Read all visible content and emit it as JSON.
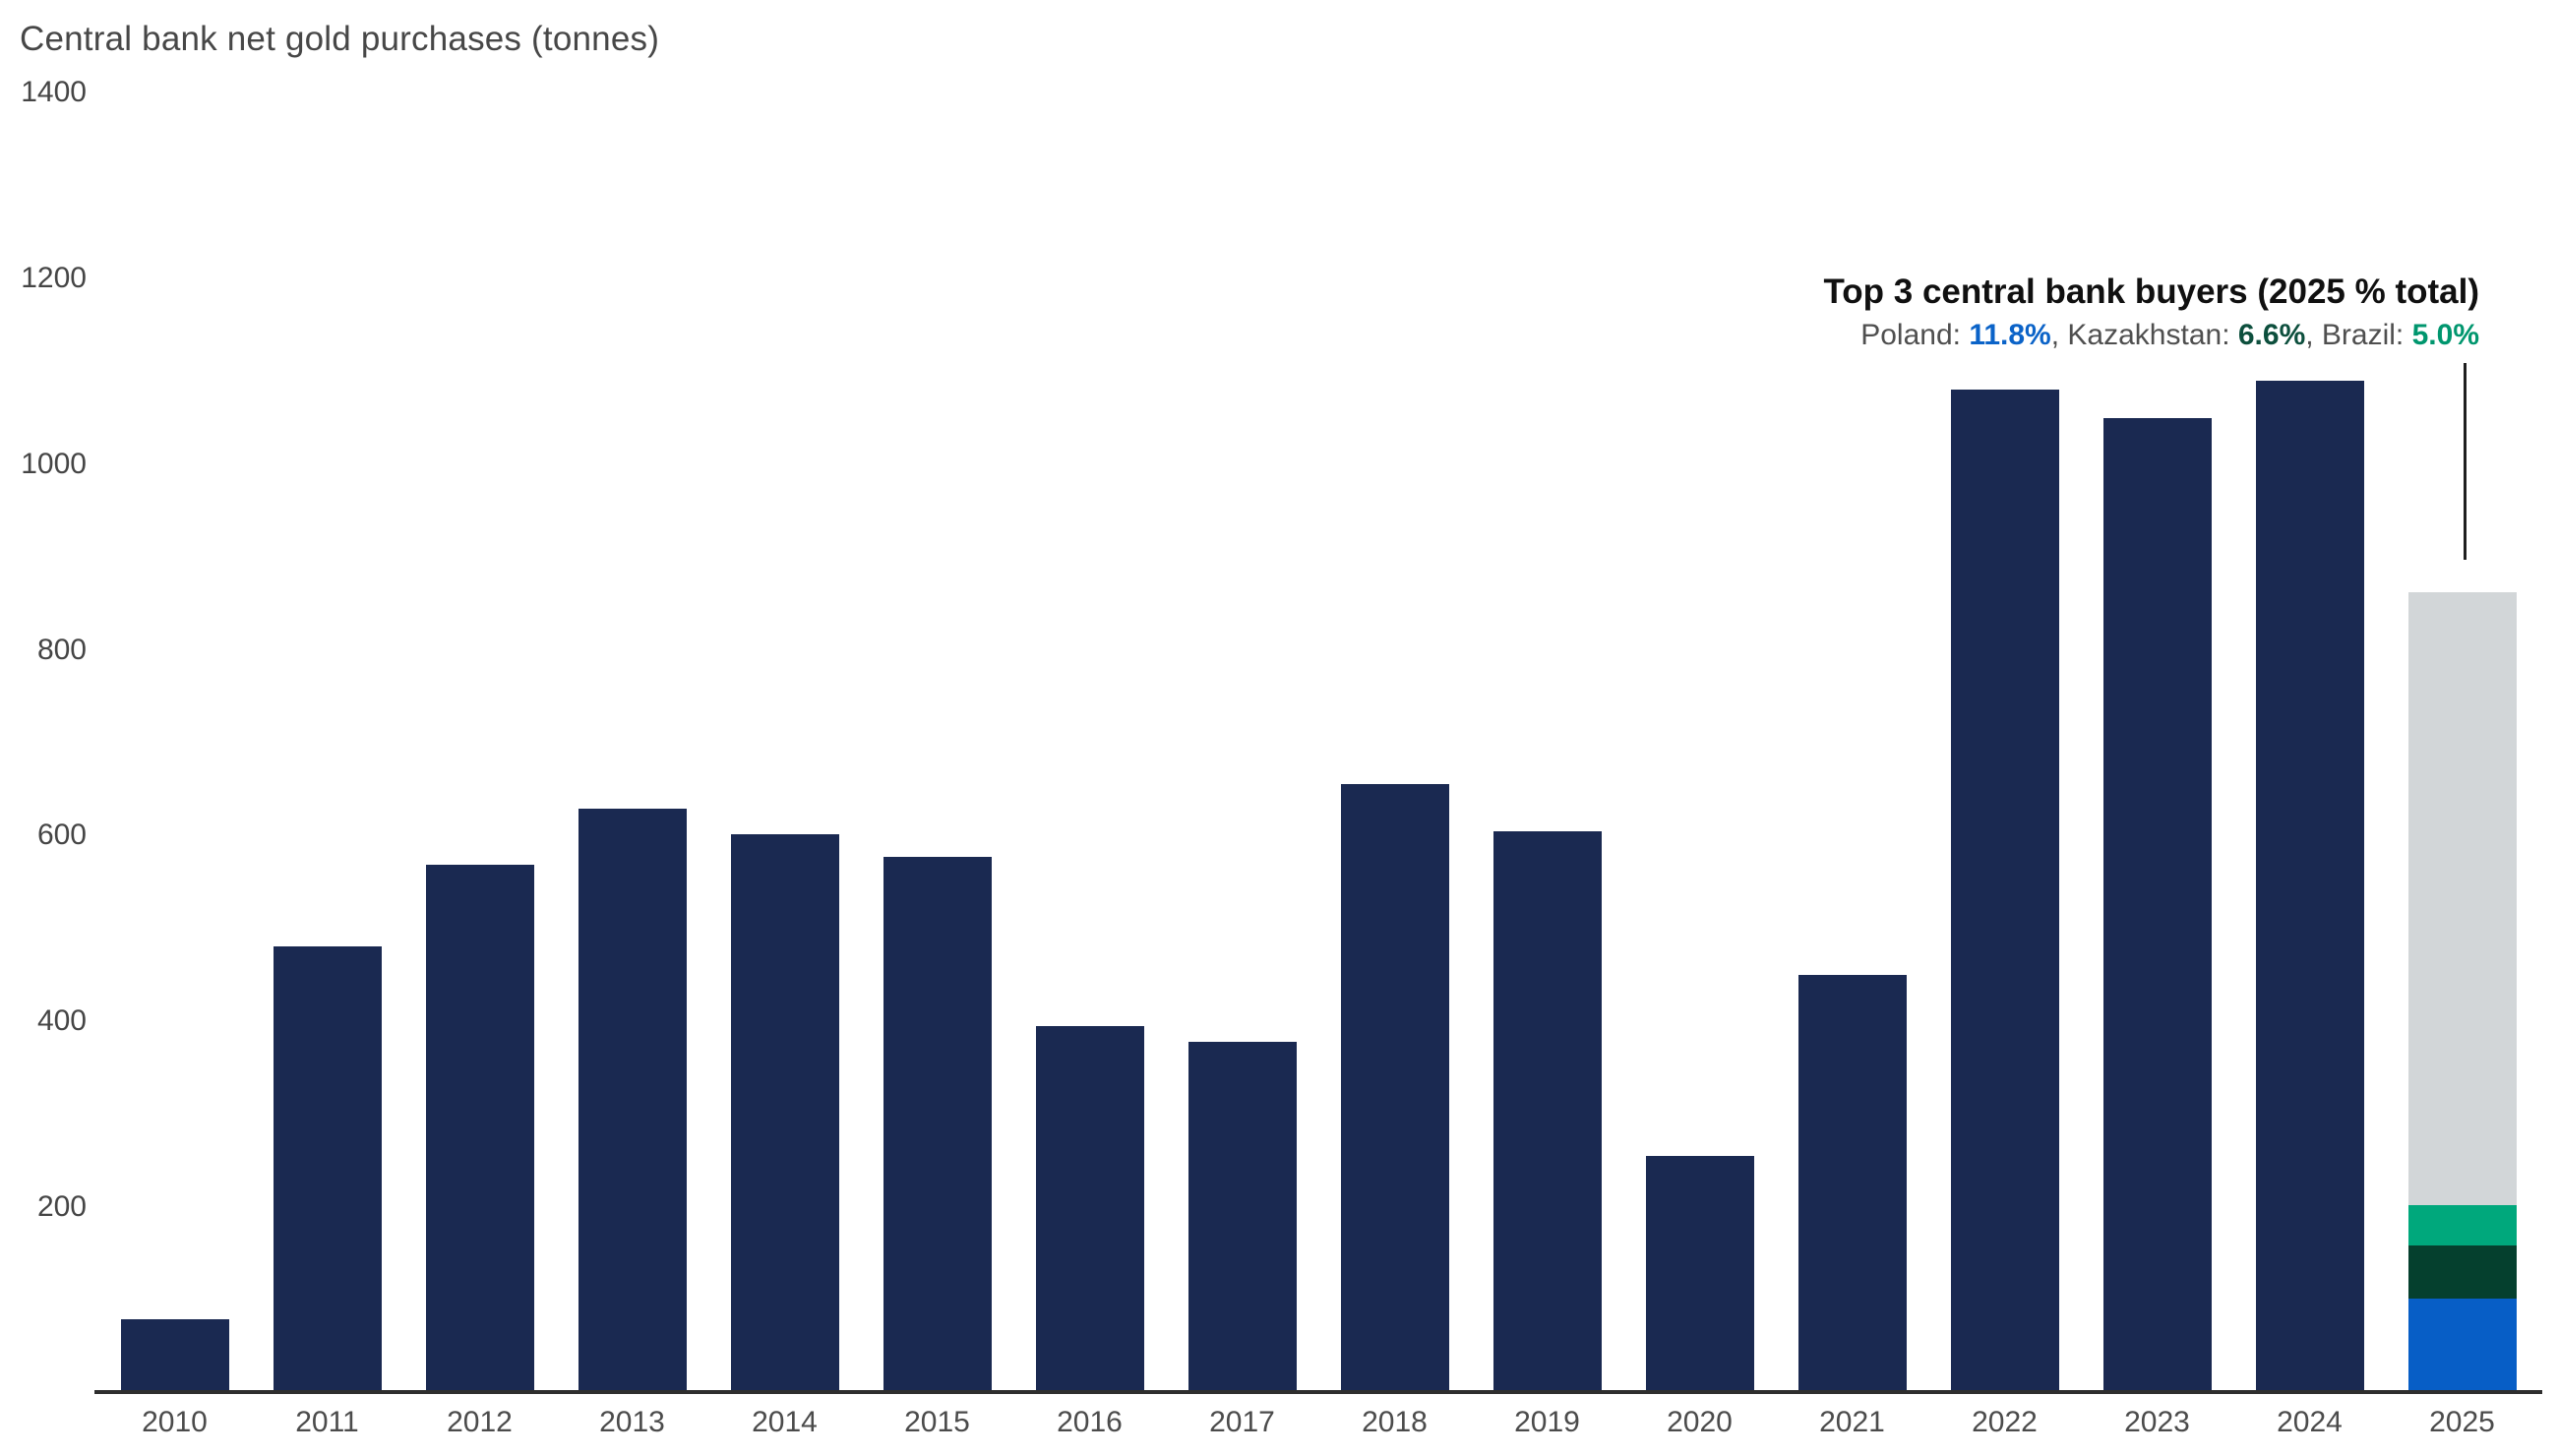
{
  "title": "Central bank net gold purchases (tonnes)",
  "chart_data": {
    "type": "bar",
    "title": "Central bank net gold purchases (tonnes)",
    "xlabel": "",
    "ylabel": "tonnes",
    "ylim": [
      0,
      1400
    ],
    "y_ticks": [
      1400,
      1200,
      1000,
      800,
      600,
      400,
      200
    ],
    "grid": false,
    "legend": "none",
    "categories": [
      "2010",
      "2011",
      "2012",
      "2013",
      "2014",
      "2015",
      "2016",
      "2017",
      "2018",
      "2019",
      "2020",
      "2021",
      "2022",
      "2023",
      "2024",
      "2025"
    ],
    "values": [
      79,
      481,
      569,
      629,
      601,
      577,
      395,
      378,
      656,
      605,
      255,
      450,
      1080,
      1050,
      1090,
      862
    ],
    "bar_color": "#1a2951",
    "stacked_category": "2025",
    "stack_2025": {
      "total": 862,
      "segments": [
        {
          "name": "Poland",
          "value": 102,
          "share_of_total": "11.8%",
          "color": "#075ec6"
        },
        {
          "name": "Kazakhstan",
          "value": 57,
          "share_of_total": "6.6%",
          "color": "#05402e"
        },
        {
          "name": "Brazil",
          "value": 43,
          "share_of_total": "5.0%",
          "color": "#00a87c"
        },
        {
          "name": "Other buyers",
          "value": 660,
          "share_of_total": "",
          "color": "#d2d6d8"
        }
      ]
    }
  },
  "annotation": {
    "title": "Top 3 central bank buyers (2025 % total)",
    "buyers": [
      {
        "label": "Poland: ",
        "value": "11.8%",
        "suffix": ", ",
        "color": "#0b63c8"
      },
      {
        "label": "Kazakhstan: ",
        "value": "6.6%",
        "suffix": ", ",
        "color": "#0d4f3d"
      },
      {
        "label": "Brazil: ",
        "value": "5.0%",
        "suffix": "",
        "color": "#00966e"
      }
    ]
  },
  "colors": {
    "bar_navy": "#1a2951",
    "poland_blue": "#075ec6",
    "kazakhstan_dark_green": "#05402e",
    "brazil_teal": "#00a87c",
    "other_gray": "#d2d6d8",
    "axis_line": "#2e2e2e",
    "text_gray": "#4b4b4b"
  }
}
